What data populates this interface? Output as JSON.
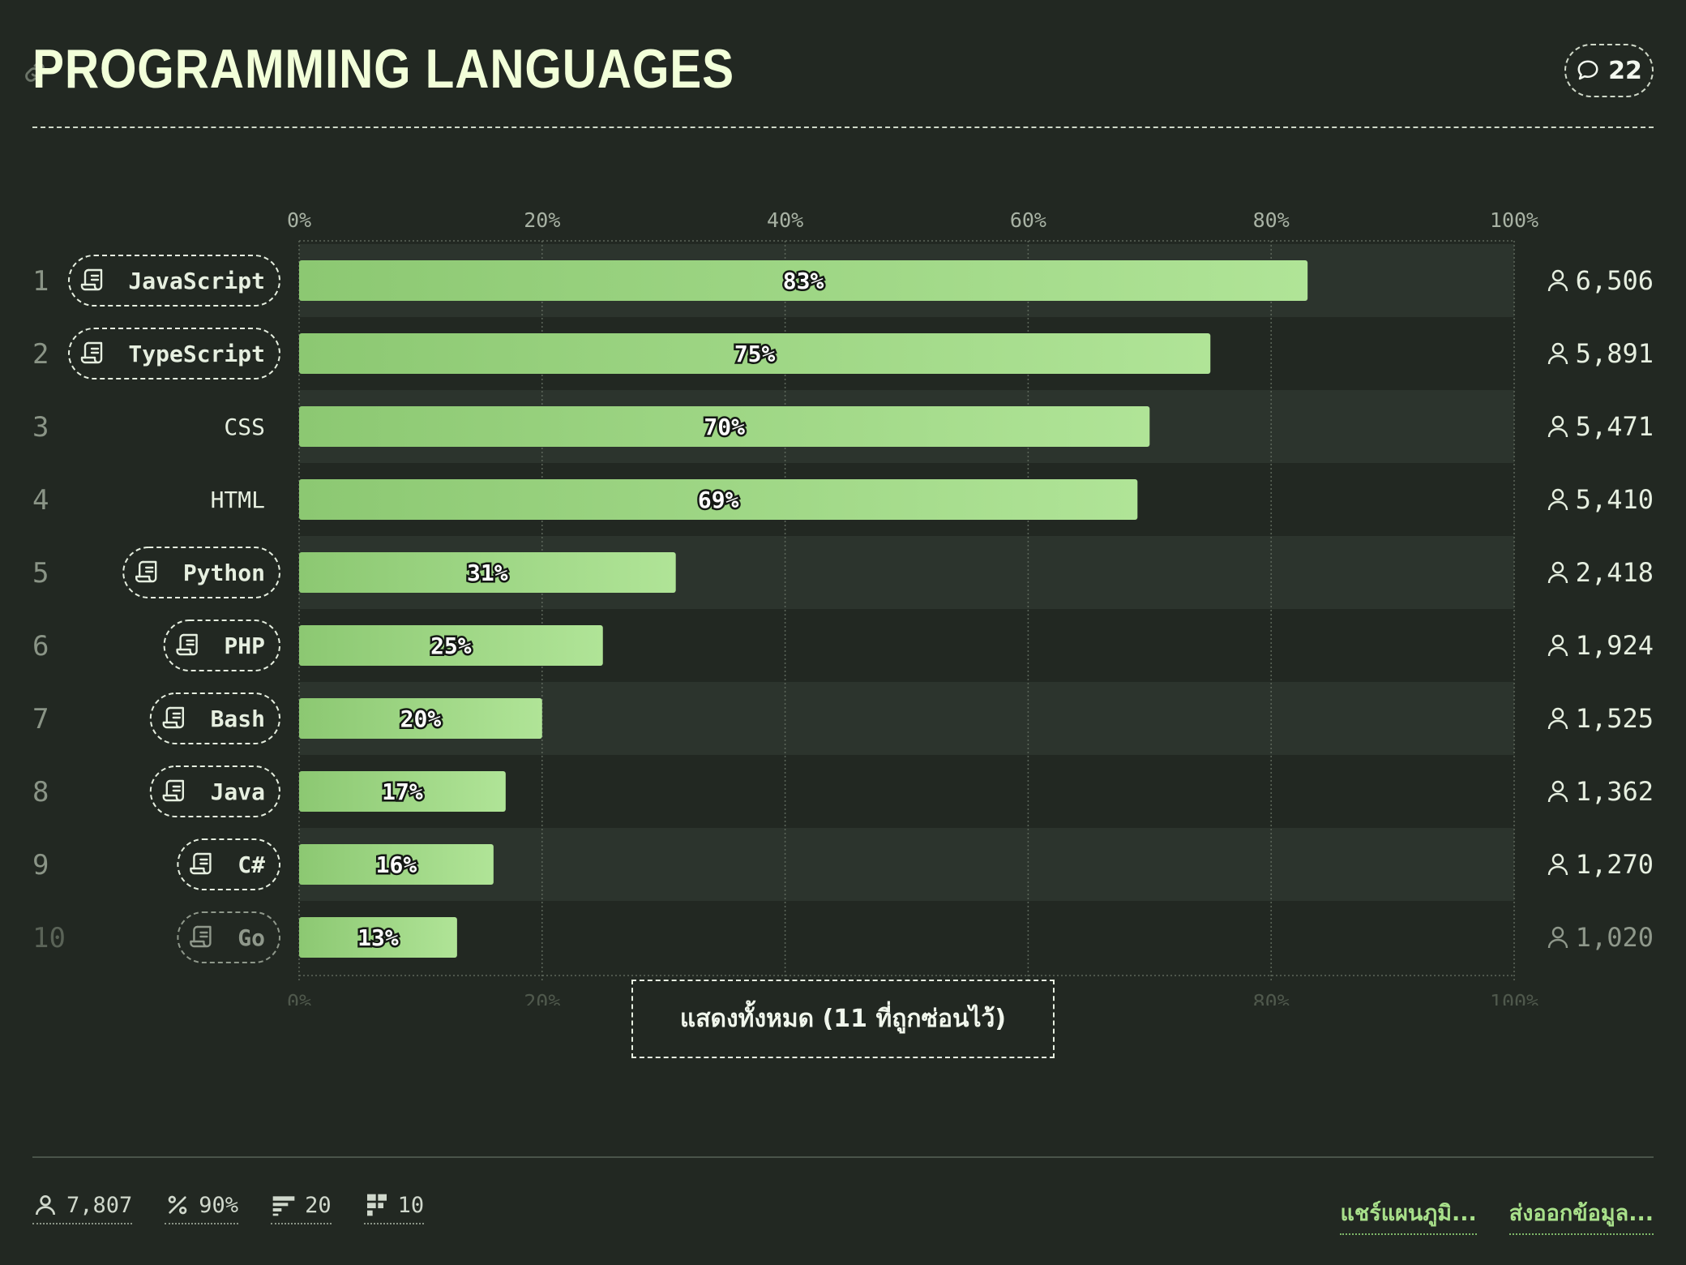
{
  "header": {
    "title": "PROGRAMMING LANGUAGES",
    "comment_count": "22"
  },
  "chart_data": {
    "type": "bar",
    "orientation": "horizontal",
    "title": "PROGRAMMING LANGUAGES",
    "xlim": [
      0,
      100
    ],
    "x_ticks": [
      "0%",
      "20%",
      "40%",
      "60%",
      "80%",
      "100%"
    ],
    "grid": true,
    "categories": [
      "JavaScript",
      "TypeScript",
      "CSS",
      "HTML",
      "Python",
      "PHP",
      "Bash",
      "Java",
      "C#",
      "Go"
    ],
    "ranks": [
      "1",
      "2",
      "3",
      "4",
      "5",
      "6",
      "7",
      "8",
      "9",
      "10"
    ],
    "values": [
      83,
      75,
      70,
      69,
      31,
      25,
      20,
      17,
      16,
      13
    ],
    "value_labels": [
      "83%",
      "75%",
      "70%",
      "69%",
      "31%",
      "25%",
      "20%",
      "17%",
      "16%",
      "13%"
    ],
    "has_tag": [
      true,
      true,
      false,
      false,
      true,
      true,
      true,
      true,
      true,
      true
    ],
    "counts": [
      "6,506",
      "5,891",
      "5,471",
      "5,410",
      "2,418",
      "1,924",
      "1,525",
      "1,362",
      "1,270",
      "1,020"
    ],
    "colors": {
      "bar_start": "#8cc872",
      "bar_end": "#b0e497",
      "row_alt": "#2c342d"
    }
  },
  "show_all_label": "แสดงทั้งหมด (11 ที่ถูกซ่อนไว้)",
  "footer": {
    "stats": [
      {
        "icon": "user-icon",
        "value": "7,807"
      },
      {
        "icon": "percent-icon",
        "value": "90%"
      },
      {
        "icon": "questions-icon",
        "value": "20"
      },
      {
        "icon": "options-icon",
        "value": "10"
      }
    ],
    "share_label": "แชร์แผนภูมิ...",
    "export_label": "ส่งออกข้อมูล..."
  }
}
